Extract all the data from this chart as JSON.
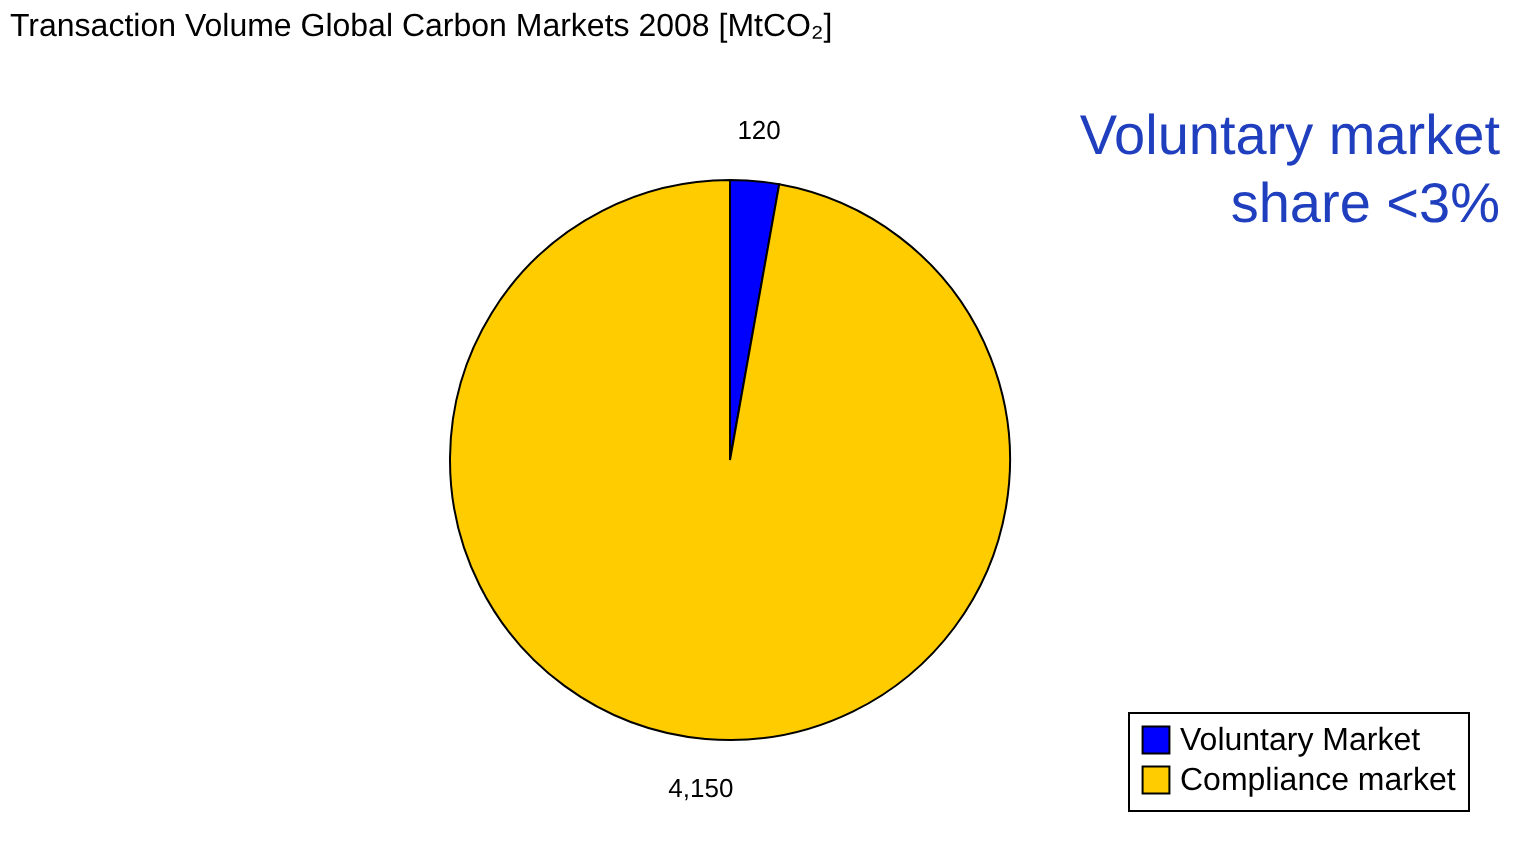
{
  "chart_data": {
    "type": "pie",
    "title": "Transaction Volume Global Carbon Markets 2008 [MtCO₂]",
    "categories": [
      "Voluntary Market",
      "Compliance market"
    ],
    "values": [
      120,
      4150
    ],
    "colors": [
      "#0000ff",
      "#ffcc00"
    ],
    "value_labels": [
      "120",
      "4,150"
    ],
    "legend": "bottom right",
    "annotations": [
      "Voluntary market\nshare <3%"
    ]
  }
}
